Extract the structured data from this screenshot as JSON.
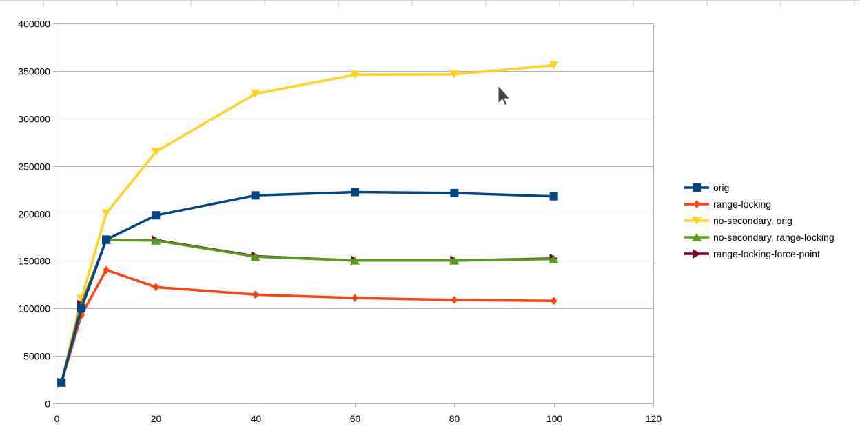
{
  "chart_data": {
    "type": "line",
    "title": "",
    "xlabel": "",
    "ylabel": "",
    "xlim": [
      0,
      120
    ],
    "ylim": [
      0,
      400000
    ],
    "x_ticks": [
      0,
      20,
      40,
      60,
      80,
      100,
      120
    ],
    "y_ticks": [
      0,
      50000,
      100000,
      150000,
      200000,
      250000,
      300000,
      350000,
      400000
    ],
    "x_tick_labels": [
      "0",
      "20",
      "40",
      "60",
      "80",
      "100",
      "120"
    ],
    "y_tick_labels": [
      "0",
      "50000",
      "100000",
      "150000",
      "200000",
      "250000",
      "300000",
      "350000",
      "400000"
    ],
    "grid": "horizontal",
    "legend_position": "right",
    "x": [
      1,
      5,
      10,
      20,
      40,
      60,
      80,
      100
    ],
    "series": [
      {
        "name": "orig",
        "color": "#004586",
        "marker": "square",
        "values": [
          22000,
          100000,
          172500,
          198000,
          219000,
          222500,
          221500,
          218000
        ]
      },
      {
        "name": "range-locking",
        "color": "#ff420e",
        "marker": "diamond",
        "values": [
          22000,
          93000,
          140500,
          122500,
          114500,
          111000,
          109000,
          108000
        ]
      },
      {
        "name": "no-secondary, orig",
        "color": "#ffd320",
        "marker": "triangle-down",
        "values": [
          22000,
          110000,
          200000,
          265000,
          326000,
          346000,
          346500,
          356000
        ]
      },
      {
        "name": "no-secondary, range-locking",
        "color": "#579d1c",
        "marker": "triangle-up",
        "values": [
          22000,
          103000,
          172000,
          171500,
          154500,
          150500,
          150500,
          152000
        ]
      },
      {
        "name": "range-locking-force-point",
        "color": "#7e0021",
        "marker": "triangle-right",
        "values": [
          22000,
          104000,
          172000,
          172000,
          155000,
          150500,
          150500,
          152500
        ]
      }
    ]
  }
}
